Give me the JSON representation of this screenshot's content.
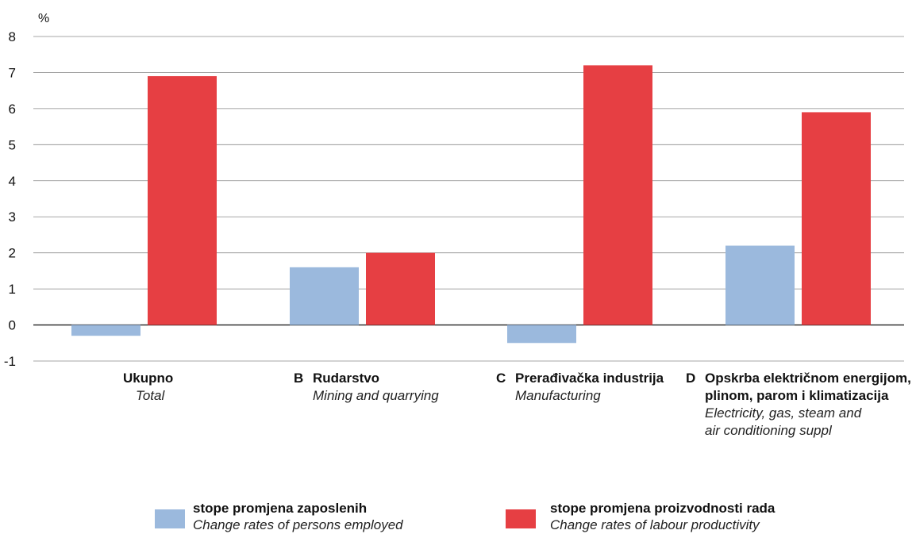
{
  "chart_data": {
    "type": "bar",
    "unit_label": "%",
    "ylim": [
      -1,
      8
    ],
    "yticks": [
      -1,
      0,
      1,
      2,
      3,
      4,
      5,
      6,
      7,
      8
    ],
    "grid": true,
    "categories": [
      {
        "code": "",
        "name_hr": "Ukupno",
        "name_en": "Total"
      },
      {
        "code": "B",
        "name_hr": "Rudarstvo",
        "name_en": "Mining and quarrying"
      },
      {
        "code": "C",
        "name_hr": "Prerađivačka industrija",
        "name_en": "Manufacturing"
      },
      {
        "code": "D",
        "name_hr": "Opskrba električnom energijom,\nplinom, parom i klimatizacija",
        "name_en": "Electricity, gas, steam and\nair conditioning suppl"
      }
    ],
    "series": [
      {
        "name": "stope promjena zaposlenih",
        "name_en": "Change rates of persons employed",
        "color": "#9bb9dd",
        "values": [
          -0.3,
          1.6,
          -0.5,
          2.2
        ]
      },
      {
        "name": "stope promjena proizvodnosti rada",
        "name_en": "Change rates of labour productivity",
        "color": "#e63f43",
        "values": [
          6.9,
          2.0,
          7.2,
          5.9
        ]
      }
    ],
    "legend_position": "bottom"
  }
}
